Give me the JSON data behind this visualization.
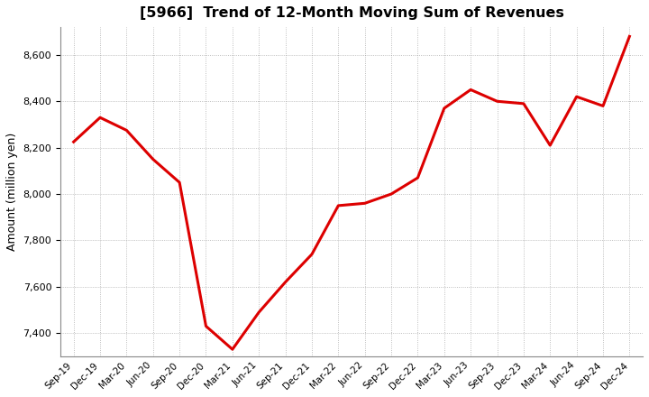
{
  "title": "[5966]  Trend of 12-Month Moving Sum of Revenues",
  "ylabel": "Amount (million yen)",
  "line_color": "#dd0000",
  "line_width": 2.2,
  "background_color": "#ffffff",
  "grid_color": "#999999",
  "ylim": [
    7300,
    8720
  ],
  "yticks": [
    7400,
    7600,
    7800,
    8000,
    8200,
    8400,
    8600
  ],
  "x_labels": [
    "Sep-19",
    "Dec-19",
    "Mar-20",
    "Jun-20",
    "Sep-20",
    "Dec-20",
    "Mar-21",
    "Jun-21",
    "Sep-21",
    "Dec-21",
    "Mar-22",
    "Jun-22",
    "Sep-22",
    "Dec-22",
    "Mar-23",
    "Jun-23",
    "Sep-23",
    "Dec-23",
    "Mar-24",
    "Jun-24",
    "Sep-24",
    "Dec-24"
  ],
  "values": [
    8225,
    8330,
    8275,
    8150,
    8050,
    7430,
    7330,
    7490,
    7620,
    7740,
    7950,
    7960,
    8000,
    8070,
    8370,
    8450,
    8400,
    8390,
    8210,
    8420,
    8380,
    8680
  ]
}
